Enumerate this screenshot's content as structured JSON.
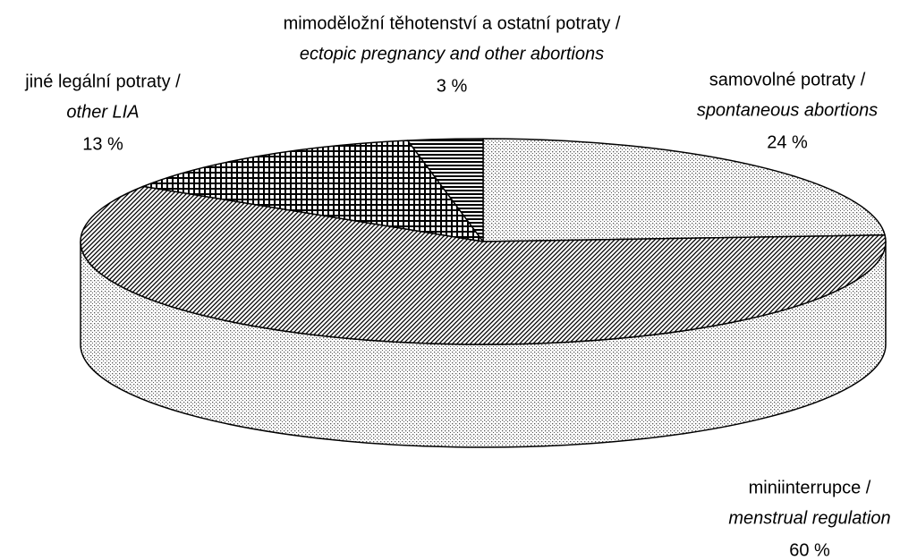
{
  "chart_data": {
    "type": "pie3d",
    "categories": [
      "samovolné potraty /",
      "miniinterrupce /",
      "jiné legální potraty /",
      "mimoděložní těhotenství a ostatní potraty /"
    ],
    "categories_en": [
      "spontaneous abortions",
      "menstrual regulation",
      "other LIA",
      "ectopic pregnancy and other abortions"
    ],
    "values": [
      24,
      60,
      13,
      3
    ],
    "value_labels": [
      "24 %",
      "60 %",
      "13 %",
      "3 %"
    ],
    "patterns": [
      "dots",
      "diagonal",
      "grid",
      "horizontal"
    ]
  }
}
